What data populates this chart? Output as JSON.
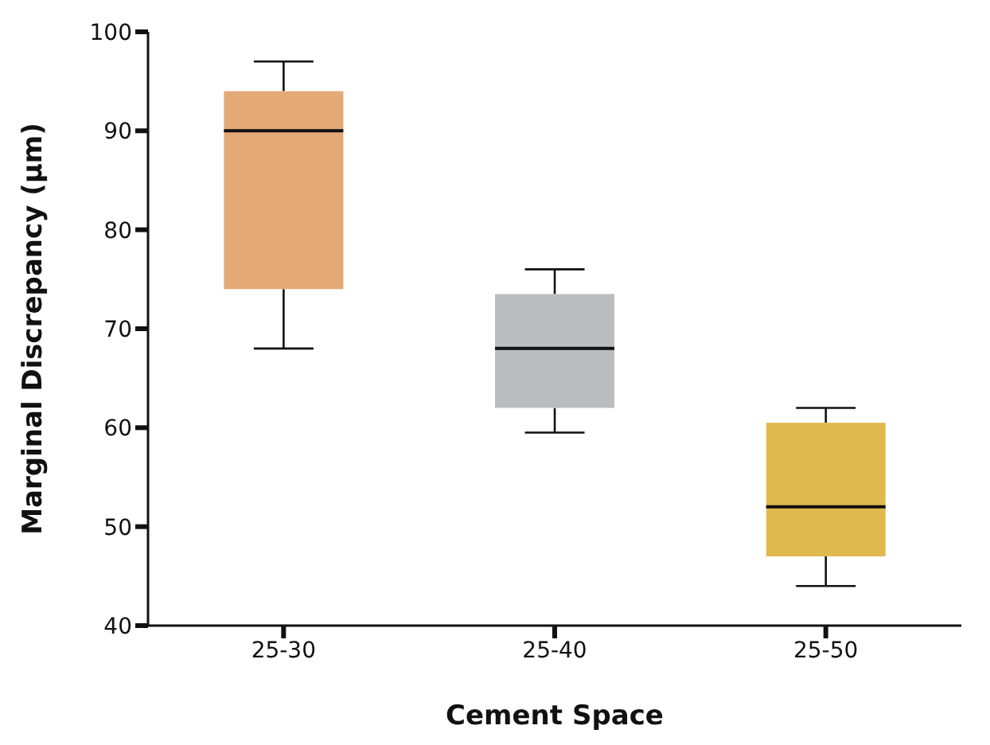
{
  "chart_data": {
    "type": "box",
    "xlabel": "Cement Space",
    "ylabel": "Marginal Discrepancy (µm)",
    "categories": [
      "25-30",
      "25-40",
      "25-50"
    ],
    "colors": [
      "#e3a977",
      "#bbbcc0",
      "#e0b94f"
    ],
    "boxes": [
      {
        "low": 68,
        "q1": 74,
        "median": 90,
        "q3": 94,
        "high": 97
      },
      {
        "low": 59.5,
        "q1": 62,
        "median": 68,
        "q3": 73.5,
        "high": 76
      },
      {
        "low": 44,
        "q1": 47,
        "median": 52,
        "q3": 60.5,
        "high": 62
      }
    ],
    "ylim": [
      40,
      100
    ],
    "yticks": [
      40,
      50,
      60,
      70,
      80,
      90,
      100
    ],
    "grid": false
  }
}
